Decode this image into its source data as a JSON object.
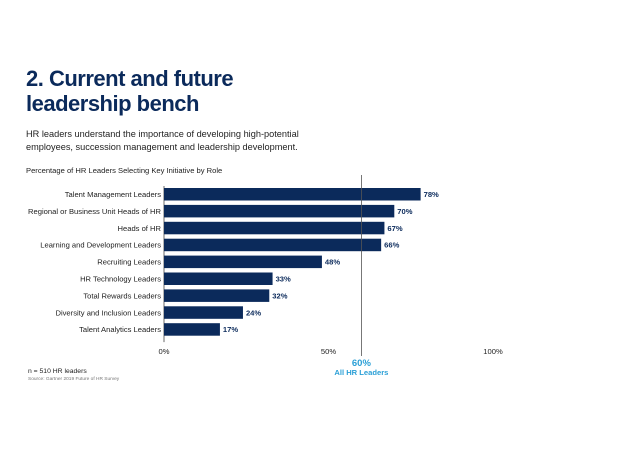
{
  "page": {
    "title_line1": "2. Current and future",
    "title_line2": "leadership bench",
    "subtitle": "HR leaders understand the importance of developing high-potential employees, succession management and leadership development.",
    "note_n": "n = 510 HR leaders",
    "note_source": "Source: Gartner 2019 Future of HR Survey"
  },
  "colors": {
    "title": "#0b2a5b",
    "bar": "#0b2a5b",
    "ref_line": "#555555",
    "ref_text": "#2a9fd6"
  },
  "chart_data": {
    "type": "bar",
    "orientation": "horizontal",
    "title": "Percentage of HR Leaders Selecting Key Initiative by Role",
    "categories": [
      "Talent Management Leaders",
      "Regional or Business Unit Heads of HR",
      "Heads of HR",
      "Learning and Development Leaders",
      "Recruiting Leaders",
      "HR Technology Leaders",
      "Total Rewards Leaders",
      "Diversity and Inclusion Leaders",
      "Talent Analytics Leaders"
    ],
    "values": [
      78,
      70,
      67,
      66,
      48,
      33,
      32,
      24,
      17
    ],
    "value_labels": [
      "78%",
      "70%",
      "67%",
      "66%",
      "48%",
      "33%",
      "32%",
      "24%",
      "17%"
    ],
    "xlim": [
      0,
      100
    ],
    "xticks": [
      0,
      50,
      100
    ],
    "xtick_labels": [
      "0%",
      "50%",
      "100%"
    ],
    "reference": {
      "value": 60,
      "value_label": "60%",
      "label": "All HR Leaders"
    },
    "grid": false,
    "legend": "none"
  }
}
